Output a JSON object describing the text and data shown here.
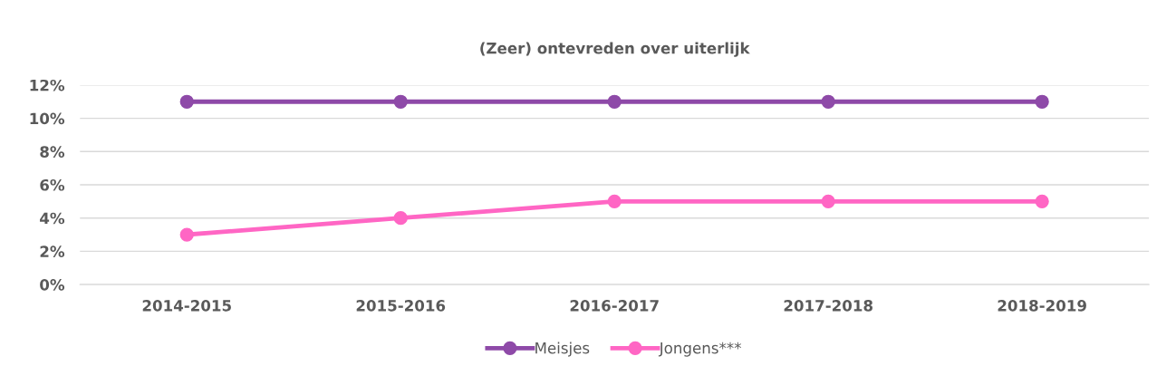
{
  "chart_data": {
    "type": "line",
    "title": "(Zeer) ontevreden over uiterlijk",
    "categories": [
      "2014-2015",
      "2015-2016",
      "2016-2017",
      "2017-2018",
      "2018-2019"
    ],
    "series": [
      {
        "name": "Meisjes",
        "color": "#8e4aa8",
        "values": [
          11,
          11,
          11,
          11,
          11
        ]
      },
      {
        "name": "Jongens***",
        "color": "#ff66c4",
        "values": [
          3,
          4,
          5,
          5,
          5
        ]
      }
    ],
    "ylim": [
      0,
      12
    ],
    "yticks": [
      {
        "value": 0,
        "label": "0%"
      },
      {
        "value": 2,
        "label": "2%"
      },
      {
        "value": 4,
        "label": "4%"
      },
      {
        "value": 6,
        "label": "6%"
      },
      {
        "value": 8,
        "label": "8%"
      },
      {
        "value": 10,
        "label": "10%"
      },
      {
        "value": 12,
        "label": "12%"
      }
    ],
    "grid": "y",
    "legend": "bottom",
    "marker": "circle",
    "line_style": "solid"
  }
}
